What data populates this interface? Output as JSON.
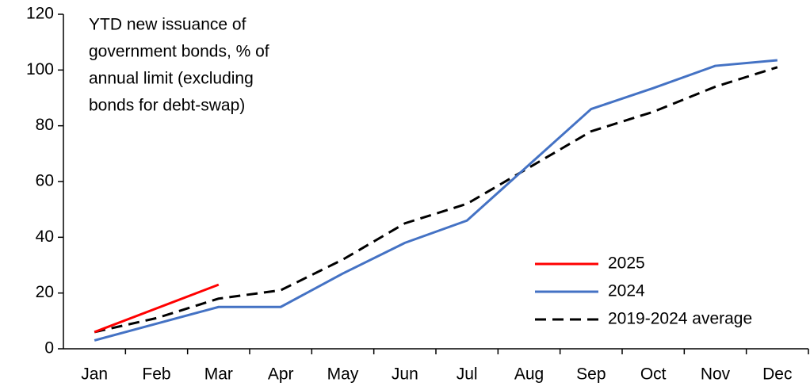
{
  "chart_data": {
    "type": "line",
    "title": [
      "YTD  new issuance of",
      "government bonds, % of",
      "annual limit (excluding",
      "bonds for debt-swap)"
    ],
    "categories": [
      "Jan",
      "Feb",
      "Mar",
      "Apr",
      "May",
      "Jun",
      "Jul",
      "Aug",
      "Sep",
      "Oct",
      "Nov",
      "Dec"
    ],
    "series": [
      {
        "name": "2025",
        "color": "#ff0000",
        "dash": false,
        "values": [
          6,
          14.5,
          23,
          null,
          null,
          null,
          null,
          null,
          null,
          null,
          null,
          null
        ]
      },
      {
        "name": "2024",
        "color": "#4472c4",
        "dash": false,
        "values": [
          3,
          9,
          15,
          15,
          27,
          38,
          46,
          66,
          86,
          93.5,
          101.5,
          103.5
        ]
      },
      {
        "name": "2019-2024 average",
        "color": "#000000",
        "dash": true,
        "values": [
          6,
          11,
          18,
          21,
          32,
          45,
          52,
          65,
          78,
          85,
          94,
          101
        ]
      }
    ],
    "ylim": [
      0,
      120
    ],
    "yticks": [
      0,
      20,
      40,
      60,
      80,
      100,
      120
    ],
    "grid": false,
    "legend": "lower right"
  }
}
